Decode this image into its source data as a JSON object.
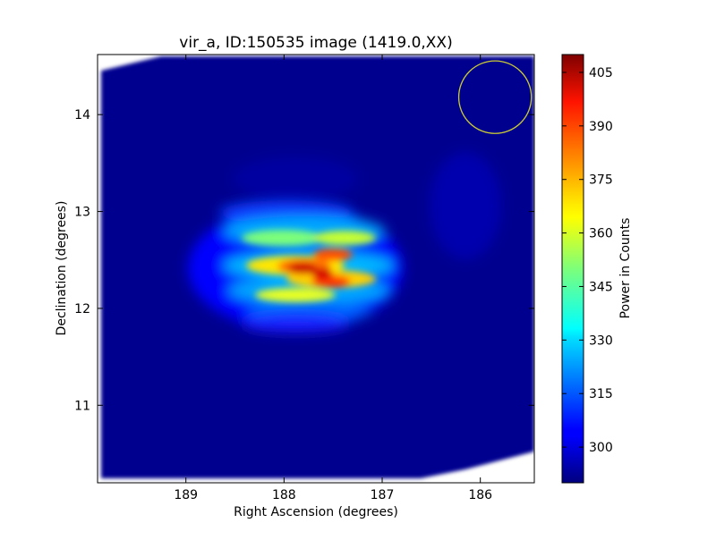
{
  "chart_data": {
    "type": "heatmap",
    "title": "vir_a, ID:150535 image (1419.0,XX)",
    "xlabel": "Right Ascension (degrees)",
    "ylabel": "Declination (degrees)",
    "xlim": [
      189.9,
      185.45
    ],
    "ylim": [
      10.2,
      14.62
    ],
    "x_ticks": [
      189,
      188,
      187,
      186
    ],
    "x_tick_labels": [
      "189",
      "188",
      "187",
      "186"
    ],
    "y_ticks": [
      11,
      12,
      13,
      14
    ],
    "y_tick_labels": [
      "11",
      "12",
      "13",
      "14"
    ],
    "colorbar": {
      "label": "Power in Counts",
      "range": [
        290,
        410
      ],
      "ticks": [
        300,
        315,
        330,
        345,
        360,
        375,
        390,
        405
      ],
      "tick_labels": [
        "300",
        "315",
        "330",
        "345",
        "360",
        "375",
        "390",
        "405"
      ],
      "colormap": "jet"
    },
    "background_level": 292,
    "source_center": {
      "ra": 187.75,
      "dec": 12.4
    },
    "source_peak": 405,
    "source_rows_dec": [
      12.95,
      12.7,
      12.4,
      12.12,
      11.85
    ],
    "beam_circle": {
      "ra": 185.85,
      "dec": 14.18,
      "radius_deg": 0.37,
      "color": "#cccc33"
    },
    "grid": false
  }
}
